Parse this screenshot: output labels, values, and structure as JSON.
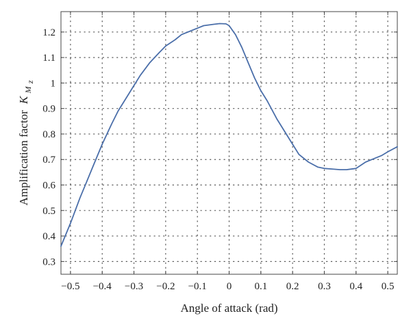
{
  "chart_data": {
    "type": "line",
    "title": "",
    "xlabel": "Angle of attack (rad)",
    "ylabel": "Amplification factor",
    "ylabel_symbol": "K",
    "ylabel_sub_1": "M",
    "ylabel_sub_2": "z",
    "xlim": [
      -0.53,
      0.53
    ],
    "ylim": [
      0.25,
      1.28
    ],
    "grid": true,
    "grid_style": "dotted",
    "xticks": [
      -0.5,
      -0.4,
      -0.3,
      -0.2,
      -0.1,
      0,
      0.1,
      0.2,
      0.3,
      0.4,
      0.5
    ],
    "xtick_labels": [
      "−0.5",
      "−0.4",
      "−0.3",
      "−0.2",
      "−0.1",
      "0",
      "0.1",
      "0.2",
      "0.3",
      "0.4",
      "0.5"
    ],
    "yticks": [
      0.3,
      0.4,
      0.5,
      0.6,
      0.7,
      0.8,
      0.9,
      1.0,
      1.1,
      1.2
    ],
    "ytick_labels": [
      "0.3",
      "0.4",
      "0.5",
      "0.6",
      "0.7",
      "0.8",
      "0.9",
      "1",
      "1.1",
      "1.2"
    ],
    "line_color": "#4a6ea9",
    "series": [
      {
        "x": [
          -0.53,
          -0.5,
          -0.47,
          -0.45,
          -0.43,
          -0.4,
          -0.37,
          -0.35,
          -0.32,
          -0.3,
          -0.28,
          -0.25,
          -0.22,
          -0.2,
          -0.17,
          -0.15,
          -0.12,
          -0.1,
          -0.08,
          -0.05,
          -0.03,
          -0.01,
          0.0,
          0.02,
          0.04,
          0.06,
          0.08,
          0.1,
          0.12,
          0.15,
          0.18,
          0.2,
          0.22,
          0.25,
          0.28,
          0.3,
          0.33,
          0.35,
          0.37,
          0.4,
          0.43,
          0.45,
          0.48,
          0.5,
          0.53
        ],
        "y": [
          0.36,
          0.45,
          0.55,
          0.61,
          0.67,
          0.76,
          0.84,
          0.89,
          0.95,
          0.99,
          1.03,
          1.08,
          1.12,
          1.145,
          1.17,
          1.19,
          1.205,
          1.215,
          1.225,
          1.23,
          1.233,
          1.232,
          1.225,
          1.19,
          1.14,
          1.08,
          1.02,
          0.97,
          0.93,
          0.86,
          0.8,
          0.76,
          0.72,
          0.69,
          0.67,
          0.665,
          0.662,
          0.66,
          0.66,
          0.665,
          0.69,
          0.7,
          0.715,
          0.73,
          0.75
        ]
      }
    ]
  }
}
